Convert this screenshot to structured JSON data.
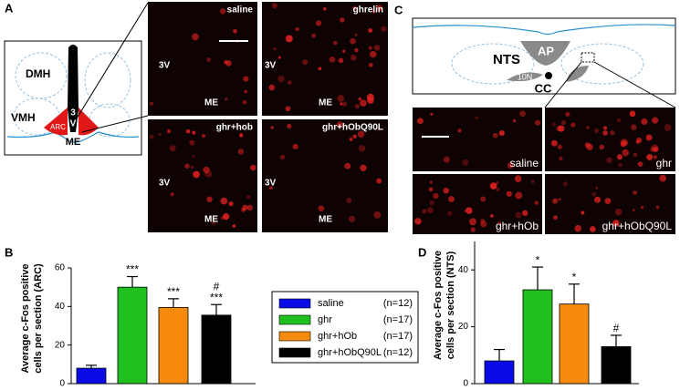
{
  "panels": {
    "a": "A",
    "b": "B",
    "c": "C",
    "d": "D"
  },
  "panel_a": {
    "diagram": {
      "dmh": "DMH",
      "vmh": "VMH",
      "arc": "ARC",
      "v3a": "3",
      "v3b": "V",
      "me": "ME"
    },
    "images": [
      {
        "label": "saline",
        "v3": "3V",
        "me": "ME"
      },
      {
        "label": "ghrelin",
        "v3": "3V",
        "me": "ME"
      },
      {
        "label": "ghr+hob",
        "v3": "3V",
        "me": "ME"
      },
      {
        "label": "ghr+hObQ90L",
        "v3": "3V",
        "me": "ME"
      }
    ]
  },
  "panel_c": {
    "diagram": {
      "nts": "NTS",
      "ap": "AP",
      "n10": "10N",
      "cc": "CC"
    },
    "images": [
      {
        "label": "saline"
      },
      {
        "label": "ghr"
      },
      {
        "label": "ghr+hOb"
      },
      {
        "label": "ghr+hObQ90L"
      }
    ]
  },
  "legend": [
    {
      "name": "saline",
      "n": "(n=12)",
      "color": "#0a0ae6"
    },
    {
      "name": "ghr",
      "n": "(n=17)",
      "color": "#1fc01f"
    },
    {
      "name": "ghr+hOb",
      "n": "(n=17)",
      "color": "#f58a0f"
    },
    {
      "name": "ghr+hObQ90L",
      "n": "(n=12)",
      "color": "#000000"
    }
  ],
  "chart_data": [
    {
      "type": "bar",
      "ylabel": [
        "Average c-Fos positive",
        "cells per section (ARC)"
      ],
      "values": [
        8,
        50,
        39.5,
        35.5
      ],
      "errors": [
        1.5,
        5.5,
        4.5,
        5.5
      ],
      "annotations": [
        null,
        "***",
        "***",
        "***"
      ],
      "hash_annotations": [
        null,
        null,
        null,
        "#"
      ],
      "ylim": [
        0,
        60
      ],
      "yticks": [
        0,
        20,
        40,
        60
      ]
    },
    {
      "type": "bar",
      "ylabel": [
        "Average c-Fos positive",
        "cells per section (NTS)"
      ],
      "values": [
        8,
        33,
        28,
        13
      ],
      "errors": [
        4,
        8,
        7,
        4
      ],
      "annotations": [
        null,
        "*",
        "*",
        "#"
      ],
      "hash_annotations": [
        null,
        null,
        null,
        null
      ],
      "ylim": [
        0,
        50
      ],
      "yticks": [
        0,
        20,
        40
      ]
    }
  ]
}
